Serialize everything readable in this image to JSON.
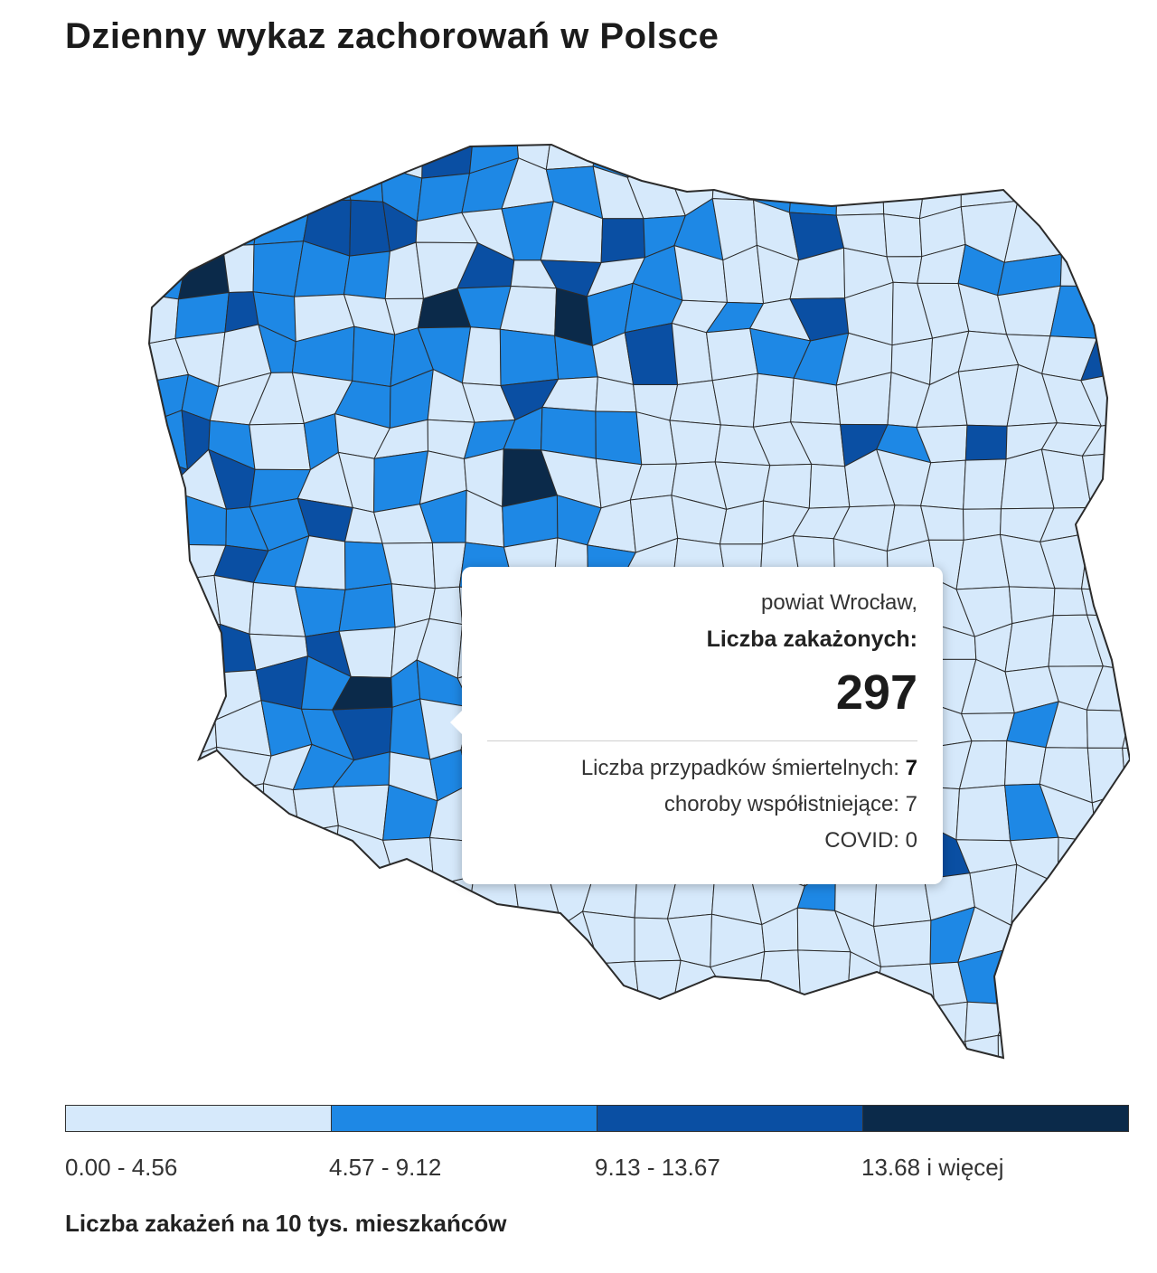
{
  "page": {
    "title": "Dzienny wykaz zachorowań w Polsce",
    "footer_note": "Liczba zakażeń na 10 tys. mieszkańców"
  },
  "colors": {
    "low": "#d6e9fb",
    "medium": "#1e88e5",
    "high": "#0a4fa3",
    "very_high": "#0b2a4a",
    "border": "#2b2b2b"
  },
  "legend": [
    {
      "label": "0.00 - 4.56",
      "color": "#d6e9fb"
    },
    {
      "label": "4.57 - 9.12",
      "color": "#1e88e5"
    },
    {
      "label": "9.13 - 13.67",
      "color": "#0a4fa3"
    },
    {
      "label": "13.68 i więcej",
      "color": "#0b2a4a"
    }
  ],
  "tooltip": {
    "region": "powiat Wrocław,",
    "infections_label": "Liczba zakażonych:",
    "infections_value": "297",
    "deaths_label": "Liczba przypadków śmiertelnych:",
    "deaths_value": "7",
    "comorbid_label": "choroby współistniejące: 7",
    "covid_label": "COVID: 0"
  }
}
